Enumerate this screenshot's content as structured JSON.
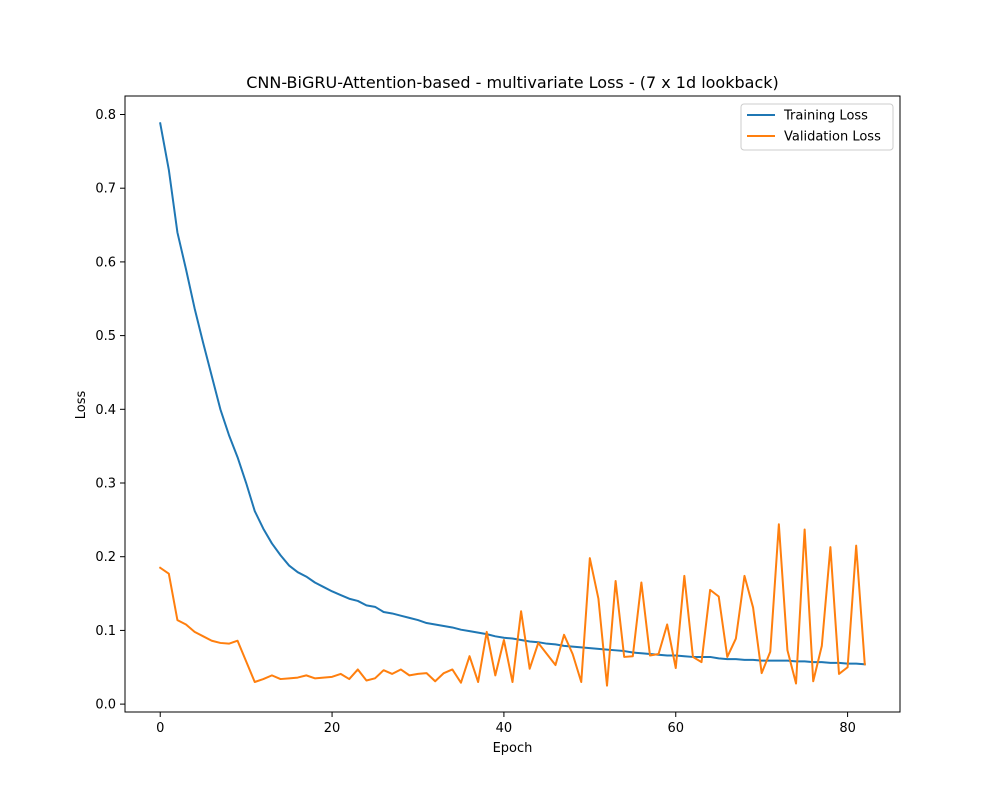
{
  "chart_data": {
    "type": "line",
    "title": "CNN-BiGRU-Attention-based - multivariate Loss - (7 x 1d lookback)",
    "xlabel": "Epoch",
    "ylabel": "Loss",
    "xlim": [
      -4.1,
      86.1
    ],
    "ylim": [
      -0.0107,
      0.8251
    ],
    "xticks": [
      0,
      20,
      40,
      60,
      80
    ],
    "xtick_labels": [
      "0",
      "20",
      "40",
      "60",
      "80"
    ],
    "yticks": [
      0.0,
      0.1,
      0.2,
      0.3,
      0.4,
      0.5,
      0.6,
      0.7,
      0.8
    ],
    "ytick_labels": [
      "0.0",
      "0.1",
      "0.2",
      "0.3",
      "0.4",
      "0.5",
      "0.6",
      "0.7",
      "0.8"
    ],
    "grid": false,
    "legend_position": "top-right",
    "x": [
      0,
      1,
      2,
      3,
      4,
      5,
      6,
      7,
      8,
      9,
      10,
      11,
      12,
      13,
      14,
      15,
      16,
      17,
      18,
      19,
      20,
      21,
      22,
      23,
      24,
      25,
      26,
      27,
      28,
      29,
      30,
      31,
      32,
      33,
      34,
      35,
      36,
      37,
      38,
      39,
      40,
      41,
      42,
      43,
      44,
      45,
      46,
      47,
      48,
      49,
      50,
      51,
      52,
      53,
      54,
      55,
      56,
      57,
      58,
      59,
      60,
      61,
      62,
      63,
      64,
      65,
      66,
      67,
      68,
      69,
      70,
      71,
      72,
      73,
      74,
      75,
      76,
      77,
      78,
      79,
      80,
      81,
      82
    ],
    "series": [
      {
        "name": "Training Loss",
        "color": "#1f77b4",
        "values": [
          0.788,
          0.725,
          0.64,
          0.59,
          0.537,
          0.49,
          0.445,
          0.4,
          0.365,
          0.335,
          0.3,
          0.262,
          0.238,
          0.218,
          0.202,
          0.188,
          0.179,
          0.173,
          0.165,
          0.159,
          0.153,
          0.148,
          0.143,
          0.14,
          0.134,
          0.132,
          0.125,
          0.123,
          0.12,
          0.117,
          0.114,
          0.11,
          0.108,
          0.106,
          0.104,
          0.101,
          0.099,
          0.097,
          0.095,
          0.092,
          0.09,
          0.089,
          0.087,
          0.085,
          0.084,
          0.082,
          0.081,
          0.079,
          0.078,
          0.077,
          0.076,
          0.075,
          0.074,
          0.073,
          0.072,
          0.07,
          0.069,
          0.068,
          0.067,
          0.066,
          0.066,
          0.065,
          0.064,
          0.064,
          0.064,
          0.062,
          0.061,
          0.061,
          0.06,
          0.06,
          0.059,
          0.059,
          0.059,
          0.059,
          0.058,
          0.058,
          0.057,
          0.057,
          0.056,
          0.056,
          0.055,
          0.055,
          0.054
        ]
      },
      {
        "name": "Validation Loss",
        "color": "#ff7f0e",
        "values": [
          0.185,
          0.177,
          0.114,
          0.108,
          0.098,
          0.092,
          0.086,
          0.083,
          0.082,
          0.086,
          0.058,
          0.03,
          0.034,
          0.039,
          0.034,
          0.035,
          0.036,
          0.039,
          0.035,
          0.036,
          0.037,
          0.041,
          0.034,
          0.047,
          0.032,
          0.035,
          0.046,
          0.041,
          0.047,
          0.039,
          0.041,
          0.042,
          0.031,
          0.042,
          0.047,
          0.029,
          0.065,
          0.03,
          0.098,
          0.039,
          0.087,
          0.03,
          0.126,
          0.048,
          0.083,
          0.068,
          0.053,
          0.094,
          0.068,
          0.03,
          0.198,
          0.143,
          0.025,
          0.167,
          0.064,
          0.065,
          0.165,
          0.066,
          0.068,
          0.108,
          0.049,
          0.174,
          0.064,
          0.057,
          0.155,
          0.146,
          0.064,
          0.089,
          0.174,
          0.131,
          0.042,
          0.071,
          0.244,
          0.073,
          0.028,
          0.237,
          0.031,
          0.079,
          0.213,
          0.041,
          0.05,
          0.215,
          0.054
        ]
      }
    ]
  }
}
